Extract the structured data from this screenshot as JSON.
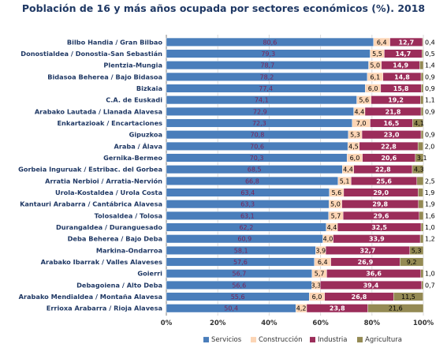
{
  "chart_data": {
    "type": "bar",
    "orientation": "horizontal",
    "stacked": true,
    "title": "Población de 16 y más años ocupada por sectores económicos (%). 2018",
    "xlim": [
      0,
      100
    ],
    "x_ticks": [
      "0%",
      "20%",
      "40%",
      "60%",
      "80%",
      "100%"
    ],
    "grid": true,
    "legend_position": "bottom",
    "categories": [
      "Bilbo Handia  /  Gran Bilbao",
      "Donostialdea  /  Donostia-San Sebastián",
      "Plentzia-Mungia",
      "Bidasoa Beherea  /  Bajo Bidasoa",
      "Bizkaia",
      "C.A. de Euskadi",
      "Arabako Lautada  /  Llanada Alavesa",
      "Enkartazioak  /  Encartaciones",
      "Gipuzkoa",
      "Araba  /  Álava",
      "Gernika-Bermeo",
      "Gorbeia Inguruak  /  Estribac. del Gorbea",
      "Arratia Nerbioi  /  Arratia-Nervión",
      "Urola-Kostaldea  /  Urola Costa",
      "Kantauri Arabarra  /  Cantábrica Alavesa",
      "Tolosaldea  /  Tolosa",
      "Durangaldea  /  Duranguesado",
      "Deba Beherea  /  Bajo Deba",
      "Markina-Ondarroa",
      "Arabako Ibarrak  /  Valles Alaveses",
      "Goierri",
      "Debagoiena  /  Alto Deba",
      "Arabako Mendialdea  /  Montaña Alavesa",
      "Errioxa Arabarra  /  Rioja Alavesa"
    ],
    "series": [
      {
        "name": "Servicios",
        "color": "#4a7ebb",
        "values": [
          80.6,
          79.3,
          78.7,
          78.2,
          77.4,
          74.1,
          72.9,
          72.3,
          70.8,
          70.6,
          70.3,
          68.5,
          66.8,
          63.4,
          63.3,
          63.1,
          62.2,
          60.9,
          58.1,
          57.6,
          56.7,
          56.6,
          55.6,
          50.4
        ],
        "labels": [
          "80,6",
          "79,3",
          "78,7",
          "78,2",
          "77,4",
          "74,1",
          "72,9",
          "72,3",
          "70,8",
          "70,6",
          "70,3",
          "68,5",
          "66,8",
          "63,4",
          "63,3",
          "63,1",
          "62,2",
          "60,9",
          "58,1",
          "57,6",
          "56,7",
          "56,6",
          "55,6",
          "50,4"
        ]
      },
      {
        "name": "Construcción",
        "color": "#fcd5b5",
        "values": [
          6.4,
          5.5,
          5.0,
          6.1,
          6.0,
          5.6,
          4.4,
          7.0,
          5.3,
          4.5,
          6.0,
          4.4,
          5.1,
          5.6,
          5.0,
          5.7,
          4.4,
          4.0,
          3.9,
          6.4,
          5.7,
          3.3,
          6.0,
          4.2
        ],
        "labels": [
          "6,4",
          "5,5",
          "5,0",
          "6,1",
          "6,0",
          "5,6",
          "4,4",
          "7,0",
          "5,3",
          "4,5",
          "6,0",
          "4,4",
          "5,1",
          "5,6",
          "5,0",
          "5,7",
          "4,4",
          "4,0",
          "3,9",
          "6,4",
          "5,7",
          "3,3",
          "6,0",
          "4,2"
        ]
      },
      {
        "name": "Industria",
        "color": "#9b2d5a",
        "values": [
          12.7,
          14.7,
          14.9,
          14.8,
          15.8,
          19.2,
          21.8,
          16.5,
          23.0,
          22.8,
          20.6,
          22.8,
          25.6,
          29.0,
          29.8,
          29.6,
          32.5,
          33.9,
          32.7,
          26.9,
          36.6,
          39.4,
          26.8,
          23.8
        ],
        "labels": [
          "12,7",
          "14,7",
          "14,9",
          "14,8",
          "15,8",
          "19,2",
          "21,8",
          "16,5",
          "23,0",
          "22,8",
          "20,6",
          "22,8",
          "25,6",
          "29,0",
          "29,8",
          "29,6",
          "32,5",
          "33,9",
          "32,7",
          "26,9",
          "36,6",
          "39,4",
          "26,8",
          "23,8"
        ]
      },
      {
        "name": "Agricultura",
        "color": "#948a54",
        "values": [
          0.4,
          0.5,
          1.4,
          0.9,
          0.9,
          1.1,
          0.9,
          4.1,
          0.9,
          2.0,
          3.1,
          4.3,
          2.5,
          1.9,
          1.9,
          1.6,
          1.0,
          1.2,
          5.3,
          9.2,
          1.0,
          0.7,
          11.5,
          21.6
        ],
        "labels": [
          "0,4",
          "0,5",
          "1,4",
          "0,9",
          "0,9",
          "1,1",
          "0,9",
          "4,1",
          "0,9",
          "2,0",
          "3,1",
          "4,3",
          "2,5",
          "1,9",
          "1,9",
          "1,6",
          "1,0",
          "1,2",
          "5,3",
          "9,2",
          "1,0",
          "0,7",
          "11,5",
          "21,6"
        ]
      }
    ]
  }
}
